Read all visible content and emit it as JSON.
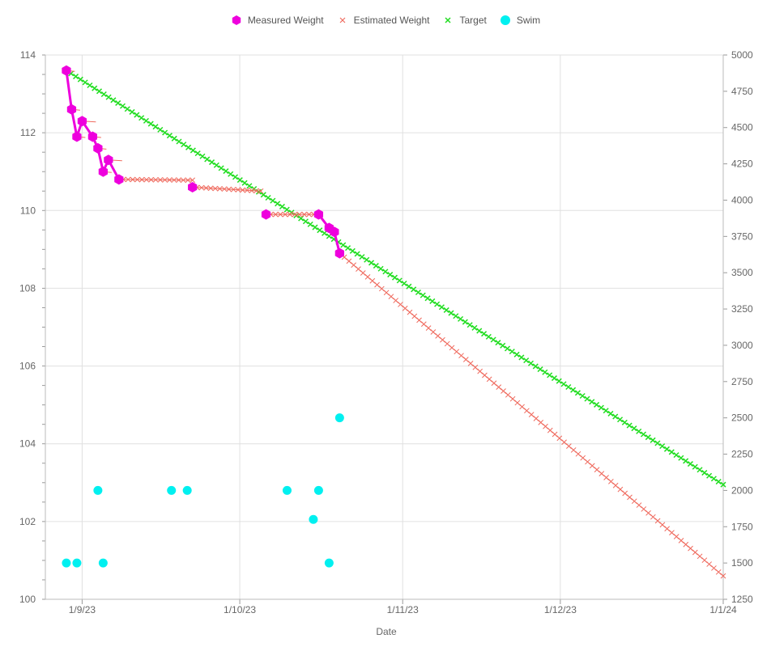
{
  "chart_data": {
    "type": "line",
    "xlabel": "Date",
    "x_axis": {
      "type": "date",
      "range": [
        "2023-08-25",
        "2024-01-01"
      ],
      "ticks": [
        {
          "label": "1/9/23",
          "date": "2023-09-01"
        },
        {
          "label": "1/10/23",
          "date": "2023-10-01"
        },
        {
          "label": "1/11/23",
          "date": "2023-11-01"
        },
        {
          "label": "1/12/23",
          "date": "2023-12-01"
        },
        {
          "label": "1/1/24",
          "date": "2024-01-01"
        }
      ]
    },
    "y_left": {
      "ylim": [
        100,
        114
      ],
      "ticks": [
        100,
        102,
        104,
        106,
        108,
        110,
        112,
        114
      ]
    },
    "y_right": {
      "ylim": [
        1250,
        5000
      ],
      "ticks": [
        1250,
        1500,
        1750,
        2000,
        2250,
        2500,
        2750,
        3000,
        3250,
        3500,
        3750,
        4000,
        4250,
        4500,
        4750,
        5000
      ]
    },
    "grid": true,
    "legend_position": "top-center",
    "series": [
      {
        "name": "Measured Weight",
        "color": "#ee00dd",
        "marker": "hexagon",
        "axis": "left",
        "points": [
          {
            "x": "2023-08-29",
            "y": 113.6
          },
          {
            "x": "2023-08-30",
            "y": 112.6
          },
          {
            "x": "2023-08-31",
            "y": 111.9
          },
          {
            "x": "2023-09-01",
            "y": 112.3
          },
          {
            "x": "2023-09-03",
            "y": 111.9
          },
          {
            "x": "2023-09-04",
            "y": 111.6
          },
          {
            "x": "2023-09-05",
            "y": 111.0
          },
          {
            "x": "2023-09-06",
            "y": 111.3
          },
          {
            "x": "2023-09-08",
            "y": 110.8
          },
          {
            "x": "2023-09-22",
            "y": 110.6
          },
          {
            "x": "2023-10-06",
            "y": 109.9
          },
          {
            "x": "2023-10-16",
            "y": 109.9
          },
          {
            "x": "2023-10-18",
            "y": 109.55
          },
          {
            "x": "2023-10-19",
            "y": 109.45
          },
          {
            "x": "2023-10-20",
            "y": 108.9
          }
        ]
      },
      {
        "name": "Estimated Weight",
        "color": "#ef6b5f",
        "marker": "cross",
        "axis": "left",
        "segments": [
          {
            "from": {
              "x": "2023-09-08",
              "y": 110.8
            },
            "to": {
              "x": "2023-09-22",
              "y": 110.78
            }
          },
          {
            "from": {
              "x": "2023-09-22",
              "y": 110.6
            },
            "to": {
              "x": "2023-10-05",
              "y": 110.5
            }
          },
          {
            "from": {
              "x": "2023-10-06",
              "y": 109.9
            },
            "to": {
              "x": "2023-10-16",
              "y": 109.9
            }
          },
          {
            "from": {
              "x": "2023-10-20",
              "y": 108.9
            },
            "to": {
              "x": "2024-01-01",
              "y": 100.6
            }
          }
        ]
      },
      {
        "name": "Target",
        "color": "#22dd22",
        "marker": "cross",
        "axis": "left",
        "line": {
          "from": {
            "x": "2023-08-29",
            "y": 113.6
          },
          "to": {
            "x": "2024-01-01",
            "y": 102.95
          }
        }
      },
      {
        "name": "Swim",
        "color": "#00f0f0",
        "marker": "circle",
        "axis": "right",
        "points": [
          {
            "x": "2023-08-29",
            "y": 1500
          },
          {
            "x": "2023-08-31",
            "y": 1500
          },
          {
            "x": "2023-09-04",
            "y": 2000
          },
          {
            "x": "2023-09-05",
            "y": 1500
          },
          {
            "x": "2023-09-18",
            "y": 2000
          },
          {
            "x": "2023-09-21",
            "y": 2000
          },
          {
            "x": "2023-10-10",
            "y": 2000
          },
          {
            "x": "2023-10-15",
            "y": 1800
          },
          {
            "x": "2023-10-16",
            "y": 2000
          },
          {
            "x": "2023-10-18",
            "y": 1500
          },
          {
            "x": "2023-10-20",
            "y": 2500
          }
        ]
      }
    ]
  }
}
